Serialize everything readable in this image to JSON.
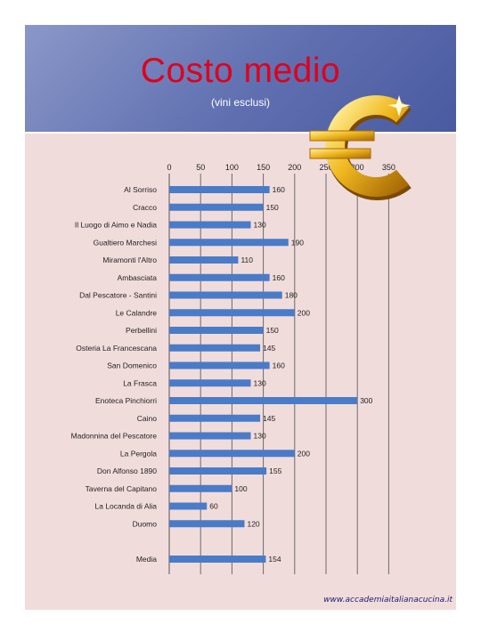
{
  "header": {
    "title": "Costo medio",
    "subtitle": "(vini esclusi)"
  },
  "footer": {
    "url": "www.accademiaitalianacucina.it"
  },
  "icons": {
    "logo": "euro-sign-icon"
  },
  "colors": {
    "bar": "#4a7bc8",
    "panel": "#f1dcdc",
    "title": "#e0001b"
  },
  "chart_data": {
    "type": "bar",
    "orientation": "horizontal",
    "title": "Costo medio",
    "subtitle": "(vini esclusi)",
    "categories": [
      "Al Sorriso",
      "Cracco",
      "Il Luogo di Aimo e Nadia",
      "Gualtiero Marchesi",
      "Miramonti l'Altro",
      "Ambasciata",
      "Dal Pescatore - Santini",
      "Le Calandre",
      "Perbellini",
      "Osteria La Francescana",
      "San Domenico",
      "La Frasca",
      "Enoteca Pinchiorri",
      "Caino",
      "Madonnina del Pescatore",
      "La Pergola",
      "Don Alfonso 1890",
      "Taverna del Capitano",
      "La Locanda di Alia",
      "Duomo",
      "Media"
    ],
    "values": [
      160,
      150,
      130,
      190,
      110,
      160,
      180,
      200,
      150,
      145,
      160,
      130,
      300,
      145,
      130,
      200,
      155,
      100,
      60,
      120,
      154
    ],
    "value_labels": [
      "160",
      "150",
      "130",
      "190",
      "110",
      "160",
      "180",
      "200",
      "150",
      "145",
      "160",
      "130",
      "300",
      "145",
      "130",
      "200",
      "155",
      "100",
      "60",
      "120",
      "154"
    ],
    "x_ticks": [
      "0",
      "50",
      "100",
      "150",
      "200",
      "250",
      "300",
      "350"
    ],
    "xlim": [
      0,
      350
    ],
    "grid": true,
    "xaxis_position": "top"
  }
}
